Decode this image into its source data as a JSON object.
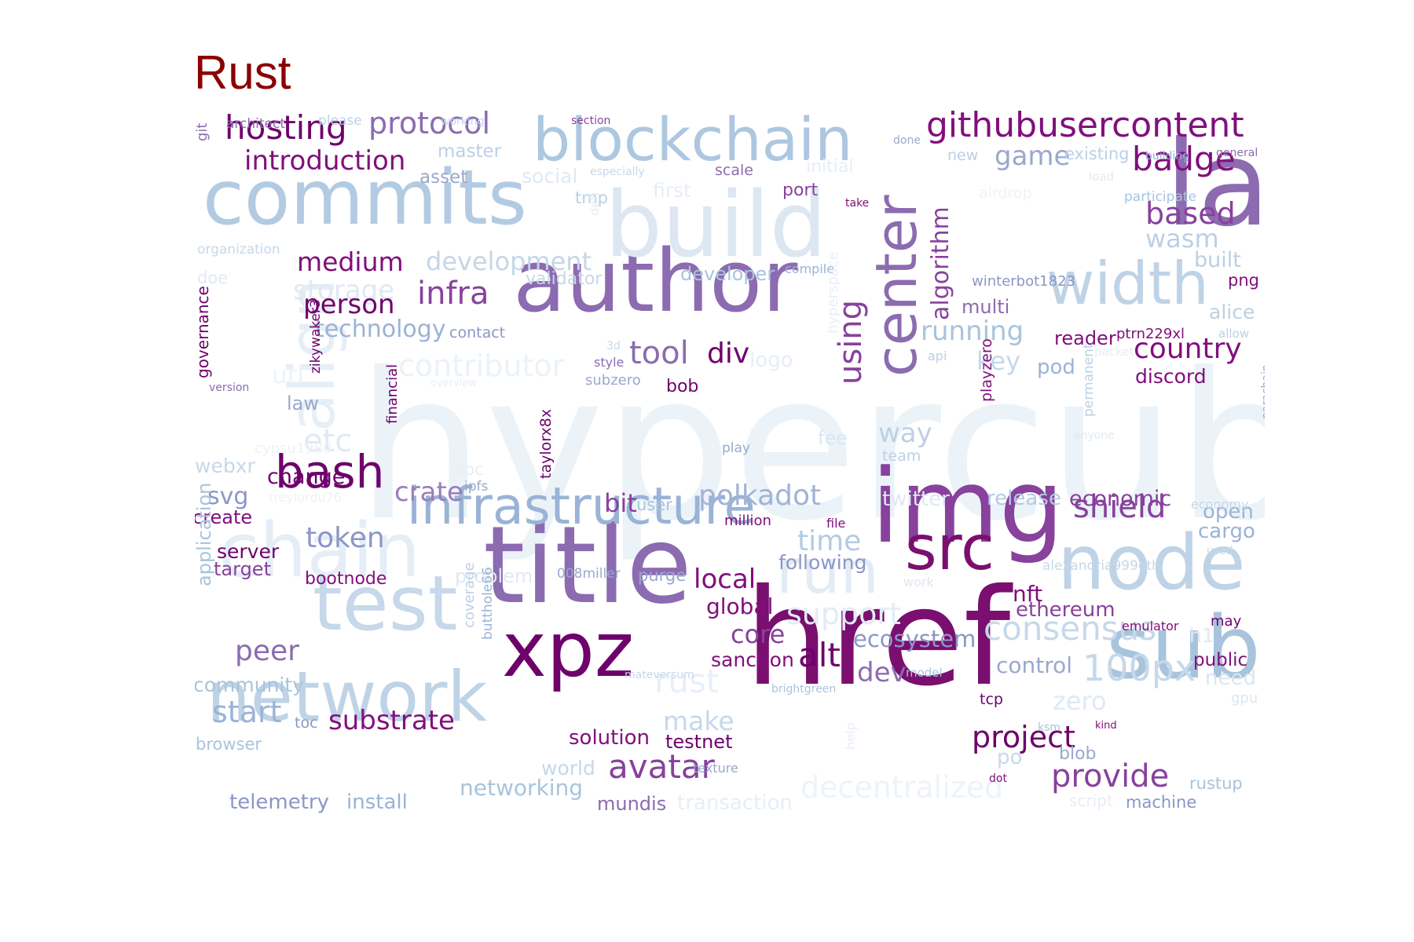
{
  "title": "Rust",
  "words": [
    {
      "text": "hypercube",
      "color": "#ebf3f8"
    },
    {
      "text": "href",
      "color": "#7a0f6f"
    },
    {
      "text": "lab",
      "color": "#8c6bb1"
    },
    {
      "text": "img",
      "color": "#88419d"
    },
    {
      "text": "title",
      "color": "#8c6bb1"
    },
    {
      "text": "author",
      "color": "#8c6bb1"
    },
    {
      "text": "xpz",
      "color": "#6e016b"
    },
    {
      "text": "sub",
      "color": "#a8c4dc"
    },
    {
      "text": "network",
      "color": "#bfd3e6"
    },
    {
      "text": "node",
      "color": "#bfd3e6"
    },
    {
      "text": "build",
      "color": "#dde7f1"
    },
    {
      "text": "commits",
      "color": "#b3cbe2"
    },
    {
      "text": "blockchain",
      "color": "#adc7e0"
    },
    {
      "text": "chain",
      "color": "#e5eef6"
    },
    {
      "text": "test",
      "color": "#c6d8ea"
    },
    {
      "text": "src",
      "color": "#7a0f6f"
    },
    {
      "text": "center",
      "color": "#8c6bb1"
    },
    {
      "text": "width",
      "color": "#bfd3e6"
    },
    {
      "text": "infrastructure",
      "color": "#9ab3d6"
    },
    {
      "text": "bash",
      "color": "#6e016b"
    },
    {
      "text": "run",
      "color": "#e3ecf5"
    },
    {
      "text": "align",
      "color": "#e6eef6"
    },
    {
      "text": "githubusercontent",
      "color": "#810f7c"
    },
    {
      "text": "hosting",
      "color": "#6e016b"
    },
    {
      "text": "protocol",
      "color": "#8c6bb1"
    },
    {
      "text": "introduction",
      "color": "#810f7c"
    },
    {
      "text": "badge",
      "color": "#810f7c"
    },
    {
      "text": "game",
      "color": "#9aa8cc"
    },
    {
      "text": "based",
      "color": "#88419d"
    },
    {
      "text": "wasm",
      "color": "#bcd0e4"
    },
    {
      "text": "medium",
      "color": "#810f7c"
    },
    {
      "text": "development",
      "color": "#c5d6e8"
    },
    {
      "text": "storage",
      "color": "#e0e9f3"
    },
    {
      "text": "infra",
      "color": "#88419d"
    },
    {
      "text": "person",
      "color": "#6e016b"
    },
    {
      "text": "technology",
      "color": "#9ab3d6"
    },
    {
      "text": "tool",
      "color": "#8c6bb1"
    },
    {
      "text": "div",
      "color": "#6e016b"
    },
    {
      "text": "using",
      "color": "#88419d"
    },
    {
      "text": "algorithm",
      "color": "#88419d"
    },
    {
      "text": "running",
      "color": "#a8c4dc"
    },
    {
      "text": "country",
      "color": "#810f7c"
    },
    {
      "text": "discord",
      "color": "#810f7c"
    },
    {
      "text": "key",
      "color": "#c6d8ea"
    },
    {
      "text": "pod",
      "color": "#9ab3d6"
    },
    {
      "text": "contributor",
      "color": "#ebf2f8"
    },
    {
      "text": "polkadot",
      "color": "#a1b3d6"
    },
    {
      "text": "shield",
      "color": "#88419d"
    },
    {
      "text": "economic",
      "color": "#88419d"
    },
    {
      "text": "release",
      "color": "#b3cbe2"
    },
    {
      "text": "twitter",
      "color": "#e0e9f3"
    },
    {
      "text": "cargo",
      "color": "#9ab3d6"
    },
    {
      "text": "open",
      "color": "#9ab3d6"
    },
    {
      "text": "token",
      "color": "#8c96c6"
    },
    {
      "text": "crate",
      "color": "#9b7db9"
    },
    {
      "text": "bit",
      "color": "#88419d"
    },
    {
      "text": "time",
      "color": "#b3cbe2"
    },
    {
      "text": "following",
      "color": "#8c96c6"
    },
    {
      "text": "local",
      "color": "#810f7c"
    },
    {
      "text": "global",
      "color": "#810f7c"
    },
    {
      "text": "support",
      "color": "#e3ecf5"
    },
    {
      "text": "consensus",
      "color": "#c6d8ea"
    },
    {
      "text": "ethereum",
      "color": "#88419d"
    },
    {
      "text": "nft",
      "color": "#810f7c"
    },
    {
      "text": "core",
      "color": "#88419d"
    },
    {
      "text": "ecosystem",
      "color": "#8c96c6"
    },
    {
      "text": "sanction",
      "color": "#810f7c"
    },
    {
      "text": "alt",
      "color": "#6e016b"
    },
    {
      "text": "dev",
      "color": "#8c6bb1"
    },
    {
      "text": "control",
      "color": "#9aa8cc"
    },
    {
      "text": "100px",
      "color": "#c6d8ea"
    },
    {
      "text": "peer",
      "color": "#8c6bb1"
    },
    {
      "text": "community",
      "color": "#a8c4dc"
    },
    {
      "text": "start",
      "color": "#9ab3d6"
    },
    {
      "text": "substrate",
      "color": "#810f7c"
    },
    {
      "text": "rust",
      "color": "#e8eff7"
    },
    {
      "text": "make",
      "color": "#c6d8ea"
    },
    {
      "text": "solution",
      "color": "#810f7c"
    },
    {
      "text": "testnet",
      "color": "#6e016b"
    },
    {
      "text": "avatar",
      "color": "#88419d"
    },
    {
      "text": "project",
      "color": "#6e016b"
    },
    {
      "text": "provide",
      "color": "#88419d"
    },
    {
      "text": "decentralized",
      "color": "#edf3f9"
    },
    {
      "text": "networking",
      "color": "#a8c4dc"
    },
    {
      "text": "mundis",
      "color": "#8c6bb1"
    },
    {
      "text": "transaction",
      "color": "#e6eef6"
    },
    {
      "text": "telemetry",
      "color": "#8c96c6"
    },
    {
      "text": "install",
      "color": "#9ab3d6"
    },
    {
      "text": "world",
      "color": "#c6d8ea"
    },
    {
      "text": "way",
      "color": "#bcd0e4"
    },
    {
      "text": "team",
      "color": "#bcd0e4"
    },
    {
      "text": "fee",
      "color": "#dce6f0"
    },
    {
      "text": "etc",
      "color": "#e0e9f3"
    },
    {
      "text": "law",
      "color": "#9aa8cc"
    },
    {
      "text": "webxr",
      "color": "#c6d8ea"
    },
    {
      "text": "change",
      "color": "#6e016b"
    },
    {
      "text": "svg",
      "color": "#8c96c6"
    },
    {
      "text": "create",
      "color": "#810f7c"
    },
    {
      "text": "server",
      "color": "#6e016b"
    },
    {
      "text": "target",
      "color": "#88419d"
    },
    {
      "text": "bootnode",
      "color": "#810f7c"
    },
    {
      "text": "problem",
      "color": "#e0e9f3"
    },
    {
      "text": "purge",
      "color": "#9aa8cc"
    },
    {
      "text": "user",
      "color": "#a8c4dc"
    },
    {
      "text": "million",
      "color": "#810f7c"
    },
    {
      "text": "file",
      "color": "#810f7c"
    },
    {
      "text": "multi",
      "color": "#8c6bb1"
    },
    {
      "text": "reader",
      "color": "#810f7c"
    },
    {
      "text": "built",
      "color": "#bcd0e4"
    },
    {
      "text": "png",
      "color": "#810f7c"
    },
    {
      "text": "alice",
      "color": "#bcd0e4"
    },
    {
      "text": "developer",
      "color": "#a8c4dc"
    },
    {
      "text": "compile",
      "color": "#9ab3d6"
    },
    {
      "text": "validator",
      "color": "#c6d8ea"
    },
    {
      "text": "master",
      "color": "#bcd0e4"
    },
    {
      "text": "asset",
      "color": "#9aa8cc"
    },
    {
      "text": "social",
      "color": "#e0e9f3"
    },
    {
      "text": "first",
      "color": "#e6eef6"
    },
    {
      "text": "initial",
      "color": "#e6eef6"
    },
    {
      "text": "port",
      "color": "#88419d"
    },
    {
      "text": "scale",
      "color": "#8c6bb1"
    },
    {
      "text": "tmp",
      "color": "#bcd0e4"
    },
    {
      "text": "logo",
      "color": "#e6eef6"
    },
    {
      "text": "style",
      "color": "#8c6bb1"
    },
    {
      "text": "subzero",
      "color": "#9aa8cc"
    },
    {
      "text": "bob",
      "color": "#6e016b"
    },
    {
      "text": "contact",
      "color": "#8c96c6"
    },
    {
      "text": "doc",
      "color": "#e6eef6"
    },
    {
      "text": "ipfs",
      "color": "#9aa8cc"
    },
    {
      "text": "play",
      "color": "#9aa8cc"
    },
    {
      "text": "winterbot1823",
      "color": "#8c96c6"
    },
    {
      "text": "ptrn229xl",
      "color": "#810f7c"
    },
    {
      "text": "api",
      "color": "#bcd0e4"
    },
    {
      "text": "packet",
      "color": "#e6eef6"
    },
    {
      "text": "allow",
      "color": "#bcd0e4"
    },
    {
      "text": "new",
      "color": "#bcd0e4"
    },
    {
      "text": "existing",
      "color": "#bcd0e4"
    },
    {
      "text": "load",
      "color": "#e0e9f3"
    },
    {
      "text": "building",
      "color": "#9ab3d6"
    },
    {
      "text": "general",
      "color": "#8c6bb1"
    },
    {
      "text": "participate",
      "color": "#a8c4dc"
    },
    {
      "text": "airdrop",
      "color": "#edf3f9"
    },
    {
      "text": "done",
      "color": "#9aa8cc"
    },
    {
      "text": "section",
      "color": "#88419d"
    },
    {
      "text": "working",
      "color": "#c6d8ea"
    },
    {
      "text": "please",
      "color": "#bcd0e4"
    },
    {
      "text": "architect",
      "color": "#8c6bb1"
    },
    {
      "text": "especially",
      "color": "#c6d8ea"
    },
    {
      "text": "take",
      "color": "#810f7c"
    },
    {
      "text": "organization",
      "color": "#c6d8ea"
    },
    {
      "text": "doe",
      "color": "#e0e9f3"
    },
    {
      "text": "version",
      "color": "#8c6bb1"
    },
    {
      "text": "url",
      "color": "#edf3f9"
    },
    {
      "text": "3d",
      "color": "#c6d8ea"
    },
    {
      "text": "overview",
      "color": "#e6eef6"
    },
    {
      "text": "cypsu1980",
      "color": "#edf3f9"
    },
    {
      "text": "treylordu76",
      "color": "#edf3f9"
    },
    {
      "text": "008miller",
      "color": "#9aa8cc"
    },
    {
      "text": "mateversum",
      "color": "#c6d8ea"
    },
    {
      "text": "brightgreen",
      "color": "#a8c4dc"
    },
    {
      "text": "model",
      "color": "#a8c4dc"
    },
    {
      "text": "work",
      "color": "#dce6f0"
    },
    {
      "text": "emulator",
      "color": "#810f7c"
    },
    {
      "text": "may",
      "color": "#6e016b"
    },
    {
      "text": "h1",
      "color": "#e0e9f3"
    },
    {
      "text": "public",
      "color": "#810f7c"
    },
    {
      "text": "need",
      "color": "#dce6f0"
    },
    {
      "text": "gpu",
      "color": "#dce6f0"
    },
    {
      "text": "zero",
      "color": "#e0e9f3"
    },
    {
      "text": "tcp",
      "color": "#6e016b"
    },
    {
      "text": "ksm",
      "color": "#a8c4dc"
    },
    {
      "text": "kind",
      "color": "#810f7c"
    },
    {
      "text": "po",
      "color": "#c6d8ea"
    },
    {
      "text": "dot",
      "color": "#810f7c"
    },
    {
      "text": "blob",
      "color": "#9aa8cc"
    },
    {
      "text": "script",
      "color": "#e6eef6"
    },
    {
      "text": "machine",
      "color": "#8c96c6"
    },
    {
      "text": "rustup",
      "color": "#a8c4dc"
    },
    {
      "text": "texture",
      "color": "#9aa8cc"
    },
    {
      "text": "alexandria999eth",
      "color": "#c6d8ea"
    },
    {
      "text": "used",
      "color": "#c6d8ea"
    },
    {
      "text": "economy",
      "color": "#c6d8ea"
    },
    {
      "text": "anyone",
      "color": "#e0e9f3"
    },
    {
      "text": "toc",
      "color": "#8c96c6"
    },
    {
      "text": "browser",
      "color": "#a8c4dc"
    },
    {
      "text": "git",
      "color": "#8c6bb1"
    },
    {
      "text": "governance",
      "color": "#6e016b"
    },
    {
      "text": "zikywaker3",
      "color": "#6e016b"
    },
    {
      "text": "financial",
      "color": "#6e016b"
    },
    {
      "text": "taylorx8x",
      "color": "#6e016b"
    },
    {
      "text": "defi",
      "color": "#e6eef6"
    },
    {
      "text": "hyperspace",
      "color": "#e8eff7"
    },
    {
      "text": "playzero",
      "color": "#810f7c"
    },
    {
      "text": "permanent",
      "color": "#bcd0e4"
    },
    {
      "text": "parachain",
      "color": "#9aa8cc"
    },
    {
      "text": "application",
      "color": "#a8c4dc"
    },
    {
      "text": "coverage",
      "color": "#bcd0e4"
    },
    {
      "text": "butthole66",
      "color": "#9ab3d6"
    },
    {
      "text": "help",
      "color": "#e6eef6"
    }
  ]
}
